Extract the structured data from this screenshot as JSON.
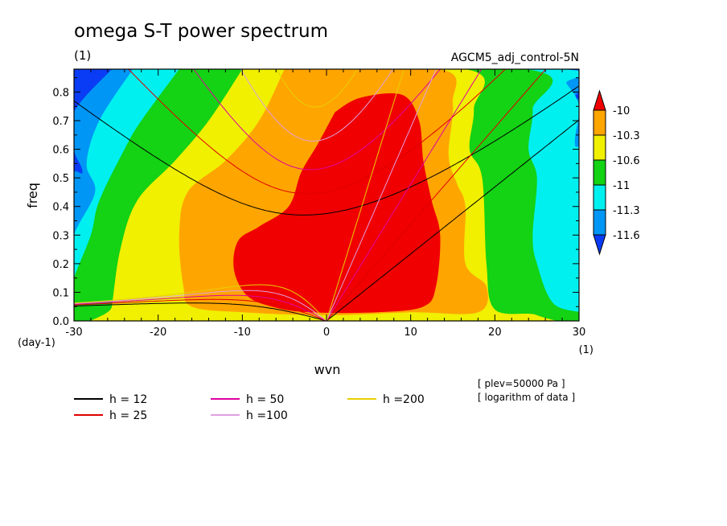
{
  "chart_data": {
    "type": "heatmap",
    "title": "omega S-T power spectrum",
    "title_unit": "(1)",
    "run_label": "AGCM5_adj_control-5N",
    "xlabel": "wvn",
    "ylabel": "freq",
    "x_unit": "(1)",
    "y_unit": "(day-1)",
    "xlim": [
      -30,
      30
    ],
    "ylim": [
      0,
      0.88
    ],
    "x_ticks": [
      -30,
      -20,
      -10,
      0,
      10,
      20,
      30
    ],
    "x_tick_labels": [
      "-30",
      "-20",
      "-10",
      "0",
      "10",
      "20",
      "30"
    ],
    "y_ticks": [
      0.0,
      0.1,
      0.2,
      0.3,
      0.4,
      0.5,
      0.6,
      0.7,
      0.8
    ],
    "y_tick_labels": [
      "0.0",
      "0.1",
      "0.2",
      "0.3",
      "0.4",
      "0.5",
      "0.6",
      "0.7",
      "0.8"
    ],
    "colorbar": {
      "levels": [
        -11.6,
        -11.3,
        -11,
        -10.6,
        -10.3,
        -10
      ],
      "labels": [
        "-11.6",
        "-11.3",
        "-11",
        "-10.6",
        "-10.3",
        "-10"
      ],
      "colors": [
        "#0a3cf5",
        "#0096f5",
        "#00f0f0",
        "#14d214",
        "#f0f000",
        "#ffa500",
        "#f00000"
      ]
    },
    "bands": [
      {
        "level": "above -10",
        "color": "#f00000"
      },
      {
        "level": "-10.3 to -10",
        "color": "#ffa500"
      },
      {
        "level": "-10.6 to -10.3",
        "color": "#f0f000"
      },
      {
        "level": "-11 to -10.6",
        "color": "#14d214"
      },
      {
        "level": "-11.3 to -11",
        "color": "#00f0f0"
      },
      {
        "level": "-11.6 to -11.3",
        "color": "#0096f5"
      },
      {
        "level": "below -11.6",
        "color": "#0a3cf5"
      }
    ],
    "dispersion_curves": [
      {
        "label": "h = 12",
        "h": 12,
        "color": "#000000"
      },
      {
        "label": "h = 25",
        "h": 25,
        "color": "#e00000"
      },
      {
        "label": "h = 50",
        "h": 50,
        "color": "#e000a0"
      },
      {
        "label": "h =100",
        "h": 100,
        "color": "#e0a0e0"
      },
      {
        "label": "h =200",
        "h": 200,
        "color": "#e8d000"
      }
    ],
    "annotations": [
      "[ plev=50000 Pa ]",
      "[ logarithm of data ]"
    ]
  }
}
